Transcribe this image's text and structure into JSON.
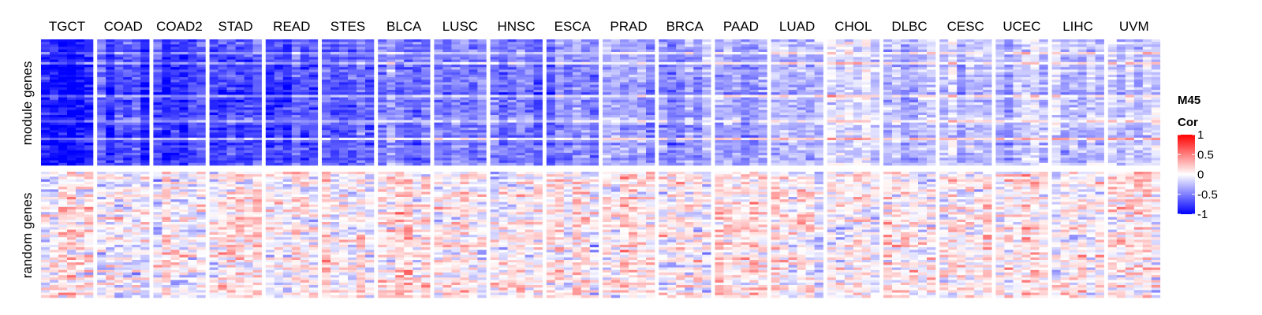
{
  "chart_data": {
    "type": "heatmap",
    "title": "",
    "xlabel": "",
    "ylabel": "",
    "columns": [
      "TGCT",
      "COAD",
      "COAD2",
      "STAD",
      "READ",
      "STES",
      "BLCA",
      "LUSC",
      "HNSC",
      "ESCA",
      "PRAD",
      "BRCA",
      "PAAD",
      "LUAD",
      "CHOL",
      "DLBC",
      "CESC",
      "UCEC",
      "LIHC",
      "UVM"
    ],
    "row_groups": [
      {
        "name": "module genes",
        "mean_correlation": [
          -0.9,
          -0.72,
          -0.75,
          -0.7,
          -0.72,
          -0.6,
          -0.52,
          -0.5,
          -0.55,
          -0.48,
          -0.35,
          -0.42,
          -0.4,
          -0.3,
          -0.15,
          -0.25,
          -0.28,
          -0.3,
          -0.28,
          -0.18
        ]
      },
      {
        "name": "random genes",
        "mean_correlation": [
          0.05,
          0.02,
          0.02,
          0.05,
          0.04,
          0.03,
          0.05,
          0.05,
          0.05,
          0.05,
          0.05,
          0.03,
          0.1,
          0.05,
          0.05,
          0.05,
          0.04,
          0.05,
          0.05,
          0.05
        ]
      }
    ],
    "legend": {
      "title_line1": "M45",
      "title_line2": "Cor",
      "ticks": [
        1,
        0.5,
        0,
        -0.5,
        -1
      ],
      "tick_labels": [
        "1",
        "0.5",
        "0",
        "-0.5",
        "-1"
      ],
      "range": [
        -1,
        1
      ],
      "colors": {
        "low": "#0000ff",
        "mid": "#ffffff",
        "high": "#ff0000"
      },
      "placement": "right"
    },
    "grid": false
  }
}
